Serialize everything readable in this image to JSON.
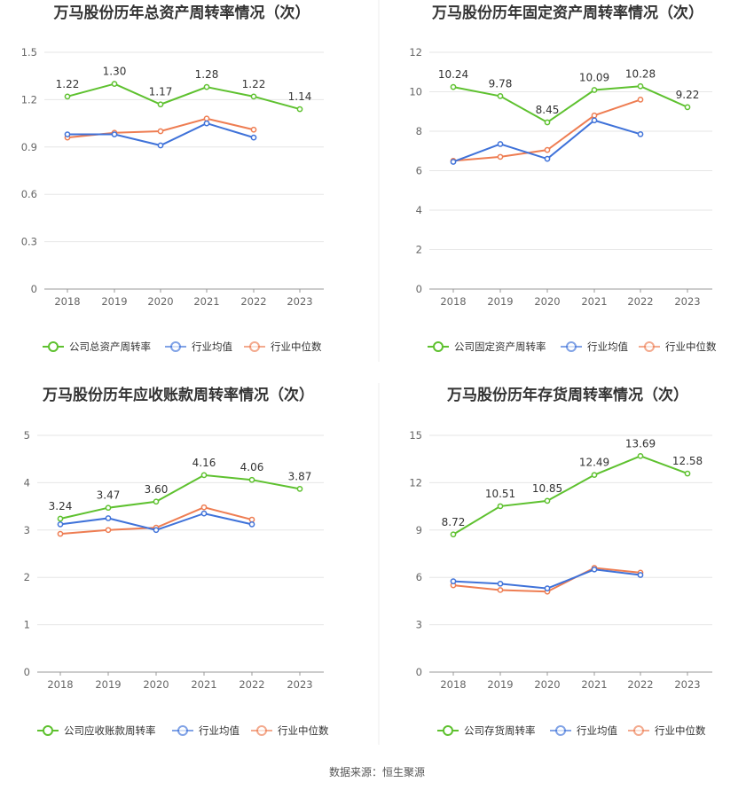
{
  "colors": {
    "company": "#5ec12f",
    "industry_avg": "#3f72d9",
    "industry_median": "#ee7d52",
    "grid": "#e6e6e6",
    "axis": "#999999"
  },
  "source_text": "数据来源：恒生聚源",
  "chart_data": [
    {
      "type": "line",
      "title": "万马股份历年总资产周转率情况（次）",
      "categories": [
        "2018",
        "2019",
        "2020",
        "2021",
        "2022",
        "2023"
      ],
      "ylim": [
        0,
        1.5
      ],
      "yticks": [
        "0",
        "0.3",
        "0.6",
        "0.9",
        "1.2",
        "1.5"
      ],
      "grid": true,
      "legend_position": "bottom",
      "series": [
        {
          "name": "公司总资产周转率",
          "values": [
            1.22,
            1.3,
            1.17,
            1.28,
            1.22,
            1.14
          ],
          "labels": [
            "1.22",
            "1.30",
            "1.17",
            "1.28",
            "1.22",
            "1.14"
          ]
        },
        {
          "name": "行业均值",
          "values": [
            0.98,
            0.98,
            0.91,
            1.05,
            0.96,
            null
          ]
        },
        {
          "name": "行业中位数",
          "values": [
            0.96,
            0.99,
            1.0,
            1.08,
            1.01,
            null
          ]
        }
      ]
    },
    {
      "type": "line",
      "title": "万马股份历年固定资产周转率情况（次）",
      "categories": [
        "2018",
        "2019",
        "2020",
        "2021",
        "2022",
        "2023"
      ],
      "ylim": [
        0,
        12
      ],
      "yticks": [
        "0",
        "2",
        "4",
        "6",
        "8",
        "10",
        "12"
      ],
      "grid": true,
      "legend_position": "bottom",
      "series": [
        {
          "name": "公司固定资产周转率",
          "values": [
            10.24,
            9.78,
            8.45,
            10.09,
            10.28,
            9.22
          ],
          "labels": [
            "10.24",
            "9.78",
            "8.45",
            "10.09",
            "10.28",
            "9.22"
          ]
        },
        {
          "name": "行业均值",
          "values": [
            6.45,
            7.35,
            6.6,
            8.55,
            7.85,
            null
          ]
        },
        {
          "name": "行业中位数",
          "values": [
            6.5,
            6.7,
            7.05,
            8.8,
            9.6,
            null
          ]
        }
      ]
    },
    {
      "type": "line",
      "title": "万马股份历年应收账款周转率情况（次）",
      "categories": [
        "2018",
        "2019",
        "2020",
        "2021",
        "2022",
        "2023"
      ],
      "ylim": [
        0,
        5
      ],
      "yticks": [
        "0",
        "1",
        "2",
        "3",
        "4",
        "5"
      ],
      "grid": true,
      "legend_position": "bottom",
      "series": [
        {
          "name": "公司应收账款周转率",
          "values": [
            3.24,
            3.47,
            3.6,
            4.16,
            4.06,
            3.87
          ],
          "labels": [
            "3.24",
            "3.47",
            "3.60",
            "4.16",
            "4.06",
            "3.87"
          ]
        },
        {
          "name": "行业均值",
          "values": [
            3.12,
            3.25,
            3.0,
            3.35,
            3.12,
            null
          ]
        },
        {
          "name": "行业中位数",
          "values": [
            2.92,
            3.0,
            3.05,
            3.48,
            3.22,
            null
          ]
        }
      ]
    },
    {
      "type": "line",
      "title": "万马股份历年存货周转率情况（次）",
      "categories": [
        "2018",
        "2019",
        "2020",
        "2021",
        "2022",
        "2023"
      ],
      "ylim": [
        0,
        15
      ],
      "yticks": [
        "0",
        "3",
        "6",
        "9",
        "12",
        "15"
      ],
      "grid": true,
      "legend_position": "bottom",
      "series": [
        {
          "name": "公司存货周转率",
          "values": [
            8.72,
            10.51,
            10.85,
            12.49,
            13.69,
            12.58
          ],
          "labels": [
            "8.72",
            "10.51",
            "10.85",
            "12.49",
            "13.69",
            "12.58"
          ]
        },
        {
          "name": "行业均值",
          "values": [
            5.75,
            5.6,
            5.3,
            6.5,
            6.15,
            null
          ]
        },
        {
          "name": "行业中位数",
          "values": [
            5.5,
            5.2,
            5.1,
            6.6,
            6.3,
            null
          ]
        }
      ]
    }
  ]
}
